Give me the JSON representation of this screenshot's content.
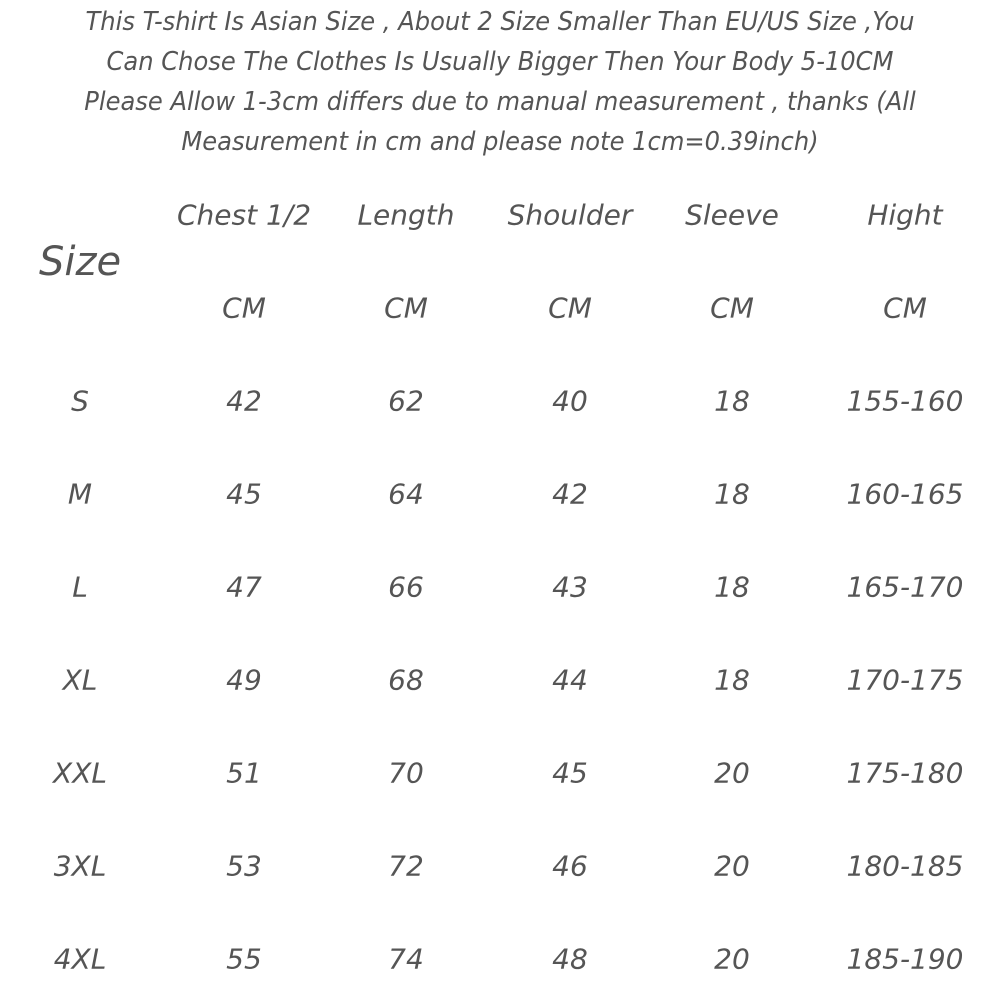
{
  "intro_lines": [
    "This T-shirt Is Asian Size , About 2 Size Smaller Than EU/US Size ,You",
    "Can Chose The Clothes Is Usually Bigger Then Your Body 5-10CM",
    "Please Allow 1-3cm differs due to manual measurement , thanks (All",
    "Measurement in cm and please note 1cm=0.39inch)"
  ],
  "table": {
    "size_label": "Size",
    "headers": [
      "Chest 1/2",
      "Length",
      "Shoulder",
      "Sleeve",
      "Hight"
    ],
    "units": [
      "CM",
      "CM",
      "CM",
      "CM",
      "CM"
    ],
    "rows": [
      [
        "S",
        "42",
        "62",
        "40",
        "18",
        "155-160"
      ],
      [
        "M",
        "45",
        "64",
        "42",
        "18",
        "160-165"
      ],
      [
        "L",
        "47",
        "66",
        "43",
        "18",
        "165-170"
      ],
      [
        "XL",
        "49",
        "68",
        "44",
        "18",
        "170-175"
      ],
      [
        "XXL",
        "51",
        "70",
        "45",
        "20",
        "175-180"
      ],
      [
        "3XL",
        "53",
        "72",
        "46",
        "20",
        "180-185"
      ],
      [
        "4XL",
        "55",
        "74",
        "48",
        "20",
        "185-190"
      ]
    ]
  },
  "colors": {
    "text": "#555555",
    "background": "#ffffff"
  }
}
